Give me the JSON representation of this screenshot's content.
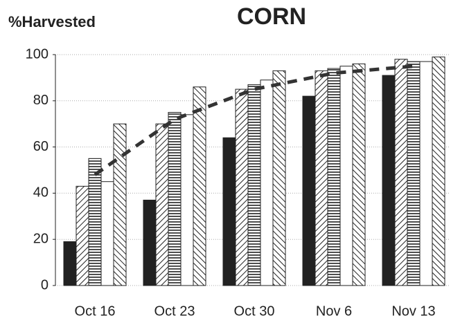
{
  "chart_data": {
    "type": "bar",
    "title": "CORN",
    "y_label": "%Harvested",
    "categories": [
      "Oct 16",
      "Oct 23",
      "Oct 30",
      "Nov 6",
      "Nov 13"
    ],
    "series": [
      {
        "color": "#222222",
        "pattern": "solid",
        "values": [
          19,
          37,
          64,
          82,
          91
        ]
      },
      {
        "color": "#222222",
        "pattern": "diagonal-back",
        "values": [
          43,
          70,
          85,
          93,
          98
        ]
      },
      {
        "color": "#222222",
        "pattern": "horizontal",
        "values": [
          55,
          75,
          87,
          94,
          97
        ]
      },
      {
        "color": "#222222",
        "pattern": "none",
        "values": [
          45,
          74,
          89,
          95,
          97
        ]
      },
      {
        "color": "#222222",
        "pattern": "diagonal-forward",
        "values": [
          70,
          86,
          93,
          96,
          99
        ]
      }
    ],
    "line": {
      "type": "line",
      "color": "#333333",
      "dashed": true,
      "values": [
        48,
        72,
        85,
        92,
        95
      ]
    },
    "ylim": [
      0,
      100
    ],
    "yticks": [
      0,
      20,
      40,
      60,
      80,
      100
    ],
    "grid": true
  }
}
